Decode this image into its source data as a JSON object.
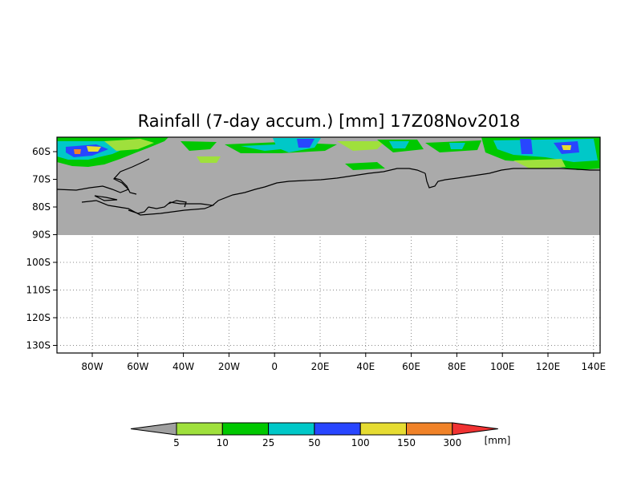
{
  "title": "Rainfall (7-day accum.) [mm] 17Z08Nov2018",
  "lat_labels": [
    "60S",
    "70S",
    "80S",
    "90S",
    "100S",
    "110S",
    "120S",
    "130S"
  ],
  "lon_labels": [
    "80W",
    "60W",
    "40W",
    "20W",
    "0",
    "20E",
    "40E",
    "60E",
    "80E",
    "100E",
    "120E",
    "140E"
  ],
  "colorbar": {
    "labels": [
      "5",
      "10",
      "25",
      "50",
      "100",
      "150",
      "300"
    ],
    "unit": "[mm]",
    "colors": [
      "#a0a0a0",
      "#9fe03c",
      "#00c800",
      "#00c8c8",
      "#2846ff",
      "#e6dc32",
      "#f08228",
      "#f03232"
    ]
  },
  "map": {
    "missing_color": "#aaaaaa",
    "coastline_color": "#000000",
    "grid_style": "dotted"
  }
}
